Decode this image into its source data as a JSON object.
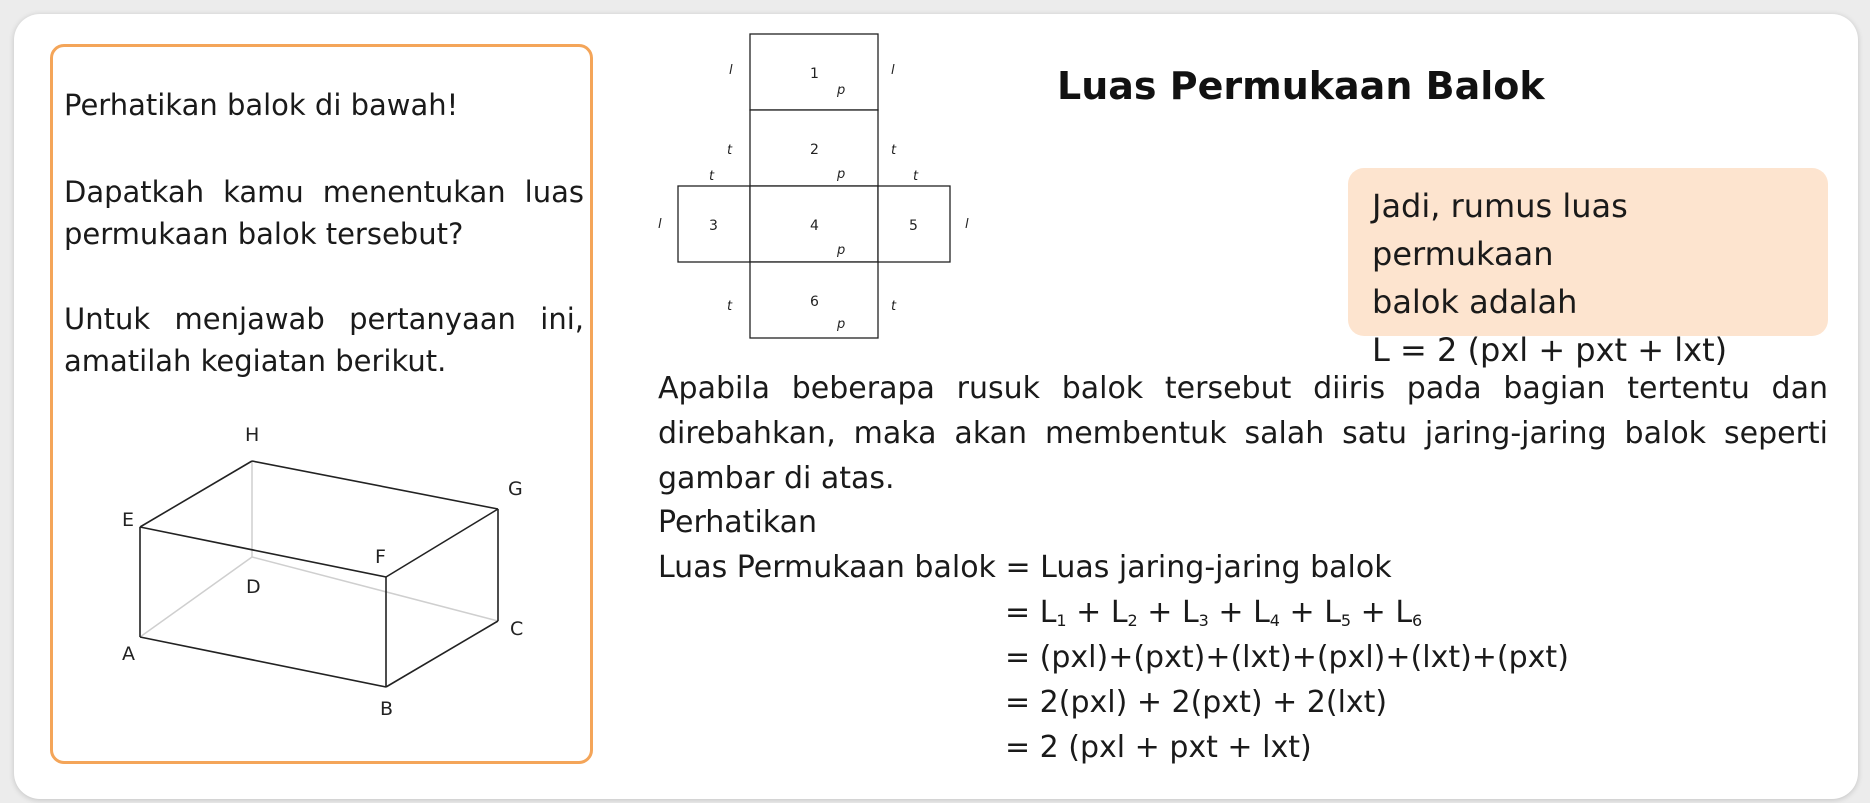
{
  "left": {
    "p1": "Perhatikan balok di bawah!",
    "p2": "Dapatkah kamu menentukan luas permukaan balok tersebut?",
    "p3": "Untuk menjawab pertanyaan ini, amatilah kegiatan berikut."
  },
  "cuboid_labels": {
    "A": "A",
    "B": "B",
    "C": "C",
    "D": "D",
    "E": "E",
    "F": "F",
    "G": "G",
    "H": "H"
  },
  "net": {
    "faces": [
      "1",
      "2",
      "3",
      "4",
      "5",
      "6"
    ],
    "p": "p",
    "l": "l",
    "t": "t"
  },
  "title": "Luas Permukaan Balok",
  "formula_box": {
    "line1": "Jadi, rumus luas permukaan",
    "line2": "balok adalah",
    "line3": "L = 2 (pxl + pxt + lxt)"
  },
  "explain": "Apabila beberapa rusuk balok tersebut diiris pada bagian tertentu dan direbahkan, maka akan membentuk salah satu jaring-jaring balok seperti gambar di atas.",
  "perhatikan": "Perhatikan",
  "eq_lhs": "Luas Permukaan balok = Luas jaring-jaring balok",
  "eq_sum": {
    "prefix": "= ",
    "L": "L",
    "plus": " + ",
    "subs": [
      "1",
      "2",
      "3",
      "4",
      "5",
      "6"
    ]
  },
  "eq3": "= (pxl)+(pxt)+(lxt)+(pxl)+(lxt)+(pxt)",
  "eq4": "= 2(pxl) + 2(pxt) + 2(lxt)",
  "eq5": "= 2 (pxl + pxt + lxt)",
  "colors": {
    "panel_border": "#f4a559",
    "formula_bg": "#fde4cf"
  }
}
